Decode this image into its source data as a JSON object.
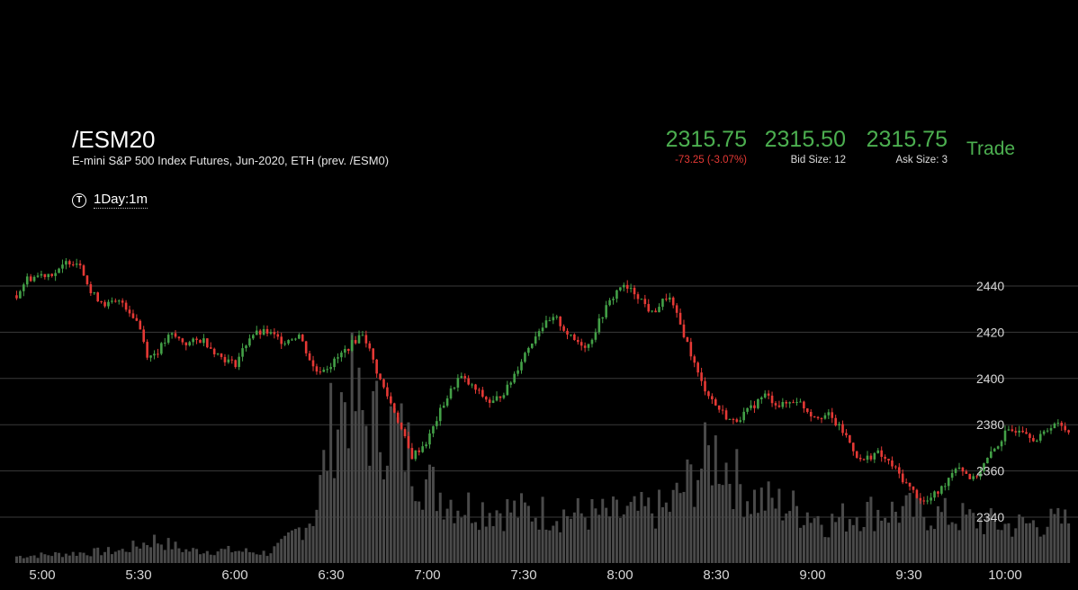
{
  "header": {
    "symbol": "/ESM20",
    "description": "E-mini S&P 500 Index Futures, Jun-2020, ETH (prev. /ESM0)",
    "interval_icon": "T",
    "interval_label": "1Day:1m"
  },
  "quote": {
    "last": "2315.75",
    "change": "-73.25 (-3.07%)",
    "bid": "2315.50",
    "bid_size": "Bid Size: 12",
    "ask": "2315.75",
    "ask_size": "Ask Size: 3",
    "trade_label": "Trade"
  },
  "colors": {
    "up": "#43a047",
    "down": "#e53935",
    "accent": "#4caf50",
    "volume": "#4a4a4a",
    "grid": "#3a3a3a",
    "background": "#000000"
  },
  "chart_data": {
    "type": "candlestick",
    "y_ticks": [
      "2440",
      "2420",
      "2400",
      "2380",
      "2360",
      "2340"
    ],
    "y_ticks_values": [
      2440,
      2420,
      2400,
      2380,
      2360,
      2340
    ],
    "x_ticks": [
      "5:00",
      "5:30",
      "6:00",
      "6:30",
      "7:00",
      "7:30",
      "8:00",
      "8:30",
      "9:00",
      "9:30",
      "10:00"
    ],
    "ylim": [
      2327,
      2456
    ],
    "price_path": [
      [
        "4:52",
        2436
      ],
      [
        "4:55",
        2443
      ],
      [
        "5:00",
        2445
      ],
      [
        "5:05",
        2446
      ],
      [
        "5:08",
        2451
      ],
      [
        "5:12",
        2450
      ],
      [
        "5:15",
        2437
      ],
      [
        "5:20",
        2432
      ],
      [
        "5:25",
        2433
      ],
      [
        "5:30",
        2424
      ],
      [
        "5:33",
        2409
      ],
      [
        "5:36",
        2412
      ],
      [
        "5:40",
        2419
      ],
      [
        "5:45",
        2415
      ],
      [
        "5:50",
        2417
      ],
      [
        "5:55",
        2410
      ],
      [
        "6:00",
        2406
      ],
      [
        "6:05",
        2419
      ],
      [
        "6:10",
        2420
      ],
      [
        "6:15",
        2416
      ],
      [
        "6:20",
        2419
      ],
      [
        "6:25",
        2403
      ],
      [
        "6:30",
        2406
      ],
      [
        "6:35",
        2413
      ],
      [
        "6:40",
        2420
      ],
      [
        "6:45",
        2400
      ],
      [
        "6:50",
        2385
      ],
      [
        "6:55",
        2366
      ],
      [
        "7:00",
        2373
      ],
      [
        "7:05",
        2389
      ],
      [
        "7:10",
        2401
      ],
      [
        "7:15",
        2395
      ],
      [
        "7:20",
        2389
      ],
      [
        "7:25",
        2396
      ],
      [
        "7:30",
        2410
      ],
      [
        "7:35",
        2422
      ],
      [
        "7:40",
        2426
      ],
      [
        "7:45",
        2417
      ],
      [
        "7:50",
        2414
      ],
      [
        "7:55",
        2429
      ],
      [
        "8:00",
        2440
      ],
      [
        "8:05",
        2437
      ],
      [
        "8:10",
        2428
      ],
      [
        "8:15",
        2436
      ],
      [
        "8:20",
        2419
      ],
      [
        "8:25",
        2399
      ],
      [
        "8:30",
        2388
      ],
      [
        "8:35",
        2381
      ],
      [
        "8:40",
        2386
      ],
      [
        "8:45",
        2393
      ],
      [
        "8:50",
        2388
      ],
      [
        "8:55",
        2391
      ],
      [
        "9:00",
        2384
      ],
      [
        "9:05",
        2384
      ],
      [
        "9:10",
        2376
      ],
      [
        "9:15",
        2364
      ],
      [
        "9:20",
        2368
      ],
      [
        "9:25",
        2362
      ],
      [
        "9:30",
        2353
      ],
      [
        "9:35",
        2346
      ],
      [
        "9:40",
        2352
      ],
      [
        "9:45",
        2363
      ],
      [
        "9:50",
        2356
      ],
      [
        "9:55",
        2366
      ],
      [
        "10:00",
        2376
      ],
      [
        "10:05",
        2379
      ],
      [
        "10:10",
        2373
      ],
      [
        "10:15",
        2381
      ],
      [
        "10:20",
        2377
      ]
    ],
    "volume_profile": [
      [
        "4:52",
        8
      ],
      [
        "5:25",
        15
      ],
      [
        "5:35",
        28
      ],
      [
        "5:45",
        15
      ],
      [
        "6:00",
        15
      ],
      [
        "6:10",
        12
      ],
      [
        "6:15",
        22
      ],
      [
        "6:25",
        60
      ],
      [
        "6:30",
        160
      ],
      [
        "6:35",
        210
      ],
      [
        "6:40",
        170
      ],
      [
        "6:50",
        160
      ],
      [
        "7:00",
        95
      ],
      [
        "7:10",
        70
      ],
      [
        "7:20",
        65
      ],
      [
        "7:30",
        62
      ],
      [
        "7:50",
        58
      ],
      [
        "8:00",
        58
      ],
      [
        "8:15",
        65
      ],
      [
        "8:25",
        115
      ],
      [
        "8:30",
        135
      ],
      [
        "8:40",
        80
      ],
      [
        "9:00",
        60
      ],
      [
        "9:05",
        48
      ],
      [
        "9:15",
        62
      ],
      [
        "9:30",
        62
      ],
      [
        "9:45",
        55
      ],
      [
        "10:00",
        45
      ],
      [
        "10:20",
        50
      ]
    ]
  }
}
